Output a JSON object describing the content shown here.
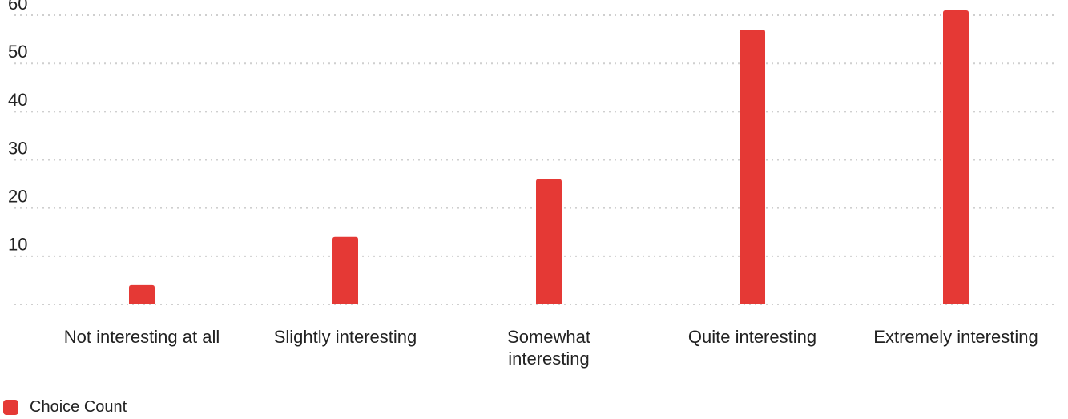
{
  "colors": {
    "bar": "#e53935",
    "grid": "#cfcfcf",
    "text": "#222222"
  },
  "chart_data": {
    "type": "bar",
    "title": "",
    "xlabel": "",
    "ylabel": "",
    "categories": [
      "Not interesting at all",
      "Slightly interesting",
      "Somewhat interesting",
      "Quite interesting",
      "Extremely interesting"
    ],
    "category_lines": [
      [
        "Not interesting at all"
      ],
      [
        "Slightly interesting"
      ],
      [
        "Somewhat",
        "interesting"
      ],
      [
        "Quite interesting"
      ],
      [
        "Extremely interesting"
      ]
    ],
    "series": [
      {
        "name": "Choice Count",
        "values": [
          4,
          14,
          26,
          57,
          61
        ]
      }
    ],
    "yticks": [
      10,
      20,
      30,
      40,
      50,
      60
    ],
    "ylim": [
      0,
      62
    ],
    "grid": true,
    "legend_position": "bottom-left"
  },
  "legend": {
    "items": [
      {
        "label": "Choice Count"
      }
    ]
  }
}
